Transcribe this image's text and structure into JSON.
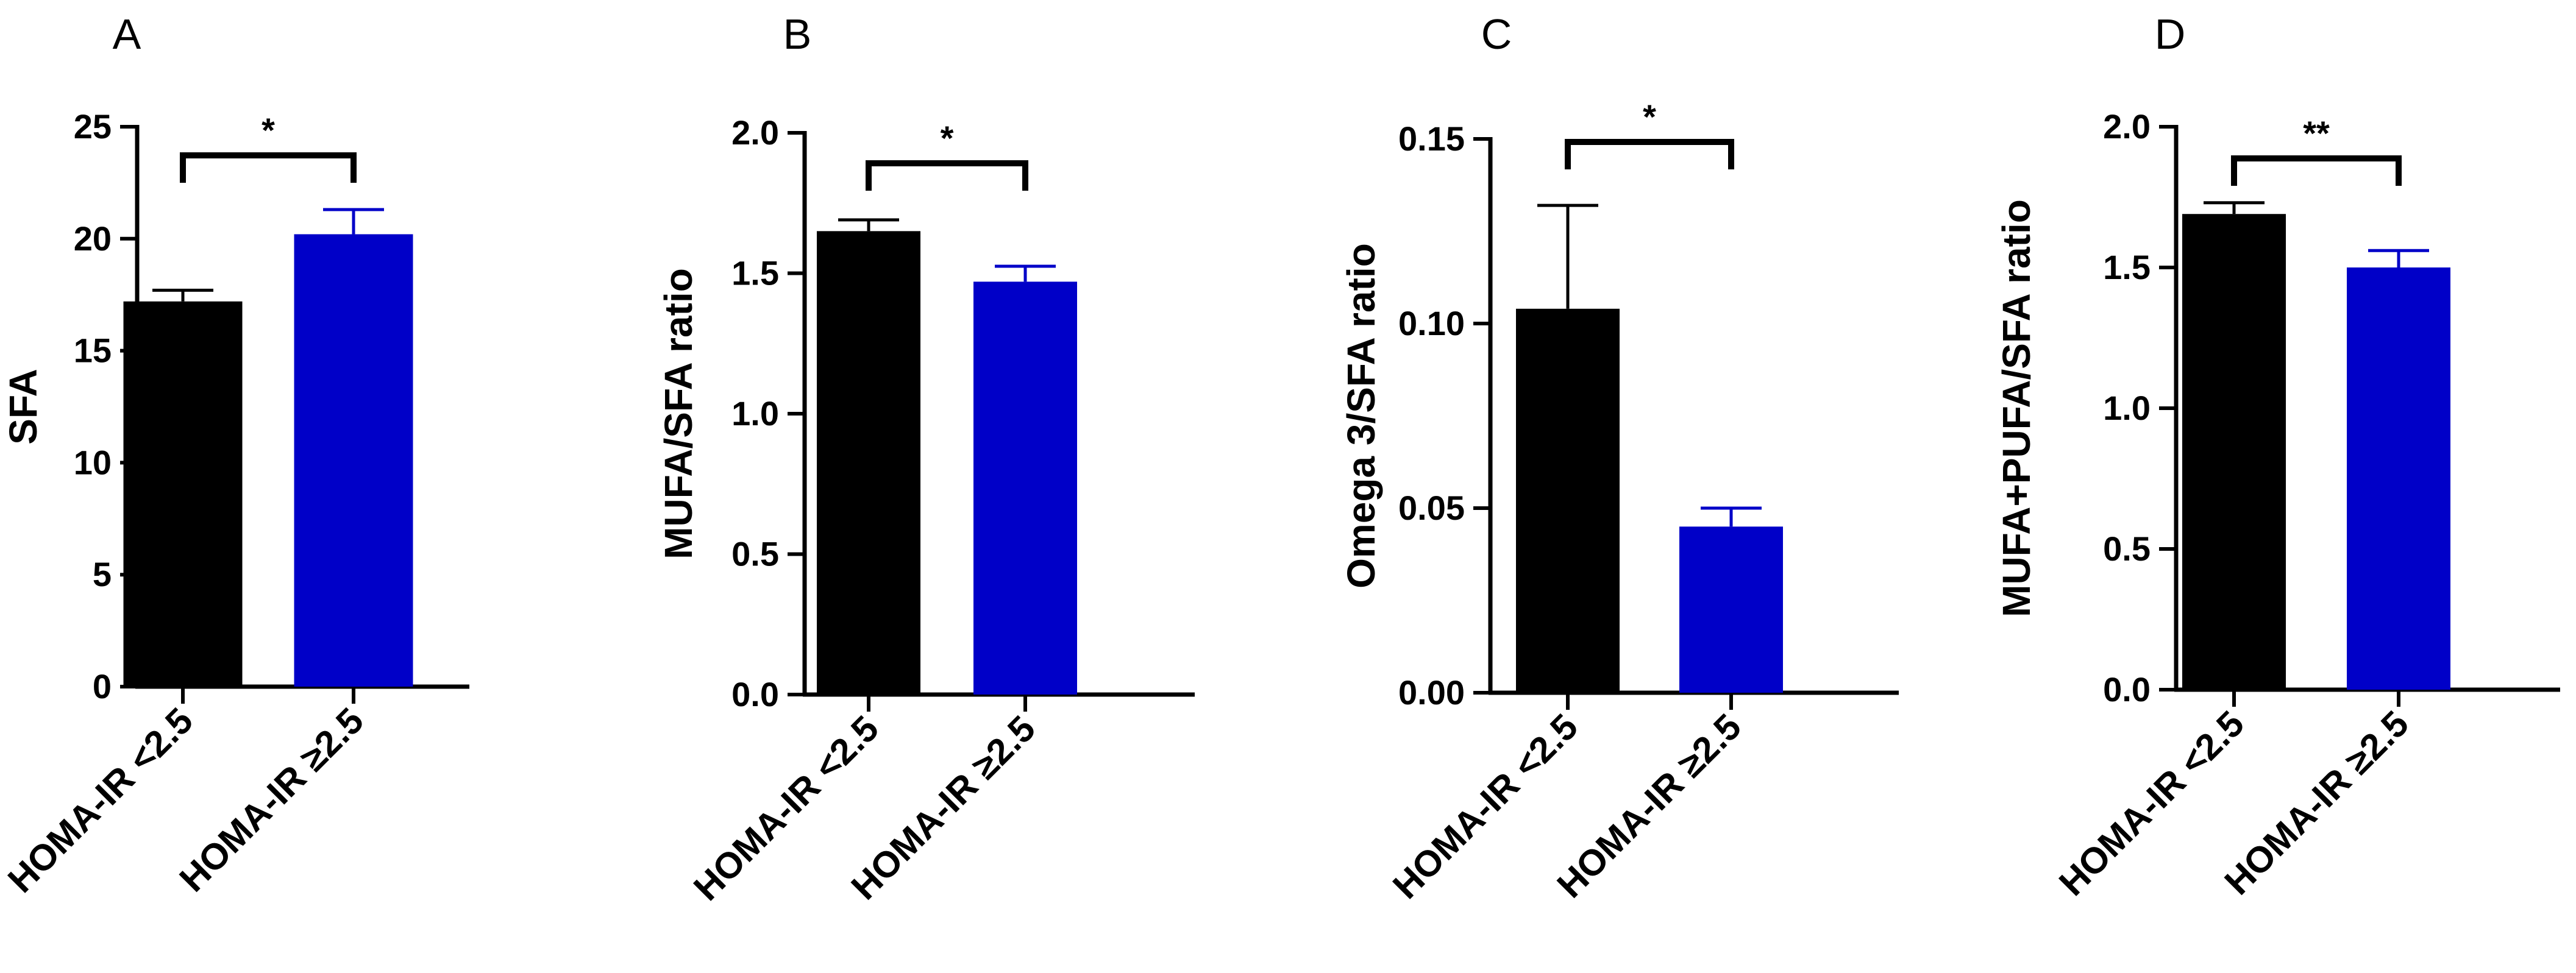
{
  "chart_data": [
    {
      "panel": "A",
      "type": "bar",
      "categories": [
        "HOMA-IR <2.5",
        "HOMA-IR ≥2.5"
      ],
      "values": [
        17.2,
        20.2
      ],
      "errors": [
        0.5,
        1.1
      ],
      "colors": [
        "#000000",
        "#0000c8"
      ],
      "ylabel": "SFA",
      "ylim": [
        0,
        25
      ],
      "yticks": [
        "0",
        "5",
        "10",
        "15",
        "20",
        "25"
      ],
      "significance": "*"
    },
    {
      "panel": "B",
      "type": "bar",
      "categories": [
        "HOMA-IR <2.5",
        "HOMA-IR ≥2.5"
      ],
      "values": [
        1.65,
        1.47
      ],
      "errors": [
        0.04,
        0.055
      ],
      "colors": [
        "#000000",
        "#0000c8"
      ],
      "ylabel": "MUFA/SFA ratio",
      "ylim": [
        0,
        2.0
      ],
      "yticks": [
        "0.0",
        "0.5",
        "1.0",
        "1.5",
        "2.0"
      ],
      "significance": "*"
    },
    {
      "panel": "C",
      "type": "bar",
      "categories": [
        "HOMA-IR <2.5",
        "HOMA-IR ≥2.5"
      ],
      "values": [
        0.104,
        0.045
      ],
      "errors": [
        0.028,
        0.005
      ],
      "colors": [
        "#000000",
        "#0000c8"
      ],
      "ylabel": "Omega 3/SFA ratio",
      "ylim": [
        0,
        0.15
      ],
      "yticks": [
        "0.00",
        "0.05",
        "0.10",
        "0.15"
      ],
      "significance": "*"
    },
    {
      "panel": "D",
      "type": "bar",
      "categories": [
        "HOMA-IR <2.5",
        "HOMA-IR ≥2.5"
      ],
      "values": [
        1.69,
        1.5
      ],
      "errors": [
        0.04,
        0.06
      ],
      "colors": [
        "#000000",
        "#0000c8"
      ],
      "ylabel": "MUFA+PUFA/SFA ratio",
      "ylim": [
        0,
        2.0
      ],
      "yticks": [
        "0.0",
        "0.5",
        "1.0",
        "1.5",
        "2.0"
      ],
      "significance": "**"
    }
  ]
}
